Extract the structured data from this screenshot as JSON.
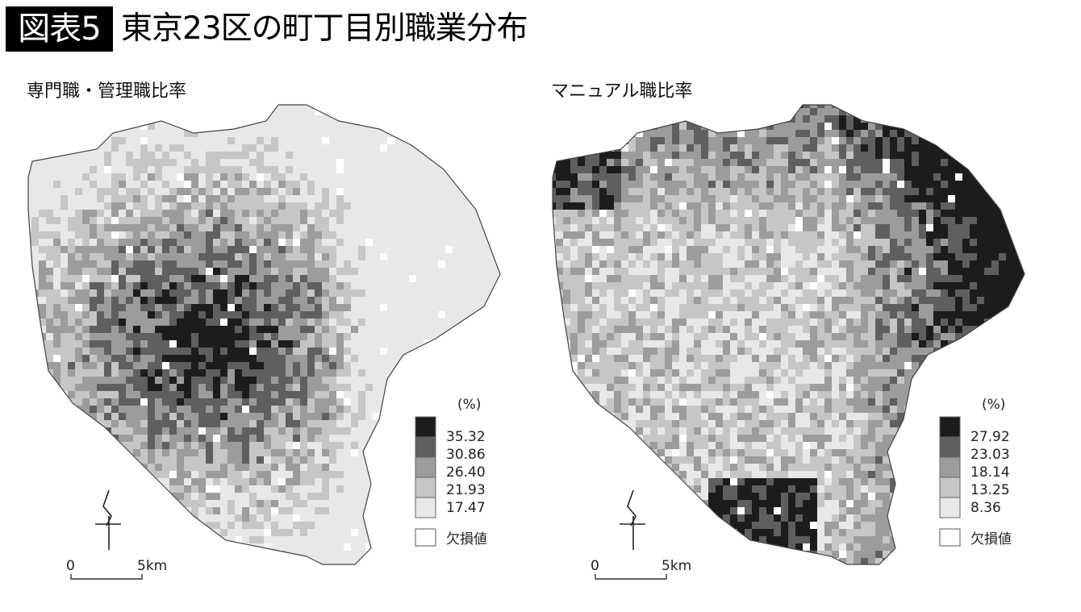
{
  "header": {
    "badge": "図表5",
    "title": "東京23区の町丁目別職業分布"
  },
  "palette": [
    "#e8e8e8",
    "#c6c6c6",
    "#9c9c9c",
    "#5f5f5f",
    "#1c1c1c"
  ],
  "missing_color": "#ffffff",
  "maps": [
    {
      "title": "専門職・管理職比率",
      "legend": {
        "unit": "(%)",
        "breaks": [
          "35.32",
          "30.86",
          "26.40",
          "21.93",
          "17.47"
        ],
        "missing_label": "欠損値"
      },
      "scale": {
        "zero": "0",
        "distance": "5km"
      },
      "pattern": "dark in central/western wards, light in eastern wards"
    },
    {
      "title": "マニュアル職比率",
      "legend": {
        "unit": "(%)",
        "breaks": [
          "27.92",
          "23.03",
          "18.14",
          "13.25",
          "8.36"
        ],
        "missing_label": "欠損値"
      },
      "scale": {
        "zero": "0",
        "distance": "5km"
      },
      "pattern": "dark in northern/eastern wards and southern tip, light in central/western wards"
    }
  ]
}
